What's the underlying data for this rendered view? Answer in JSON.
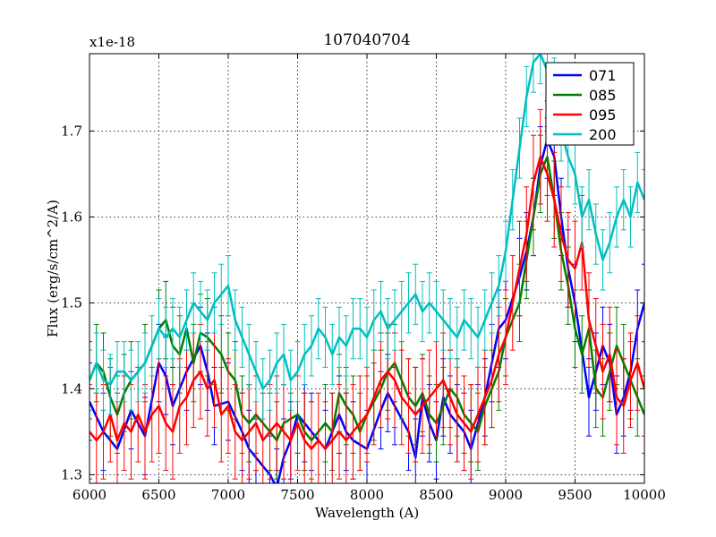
{
  "chart_data": {
    "type": "line",
    "title": "107040704",
    "xlabel": "Wavelength (A)",
    "ylabel": "Flux (erg/s/cm^2/A)",
    "offset_label": "x1e-18",
    "xlim": [
      6000,
      10000
    ],
    "ylim": [
      1.29,
      1.79
    ],
    "xticks": [
      6000,
      6500,
      7000,
      7500,
      8000,
      8500,
      9000,
      9500,
      10000
    ],
    "yticks": [
      1.3,
      1.4,
      1.5,
      1.6,
      1.7
    ],
    "ytick_labels": [
      "1.3",
      "1.4",
      "1.5",
      "1.6",
      "1.7"
    ],
    "grid": true,
    "legend_position": "top-right",
    "series": [
      {
        "name": "071",
        "color": "#0000ff",
        "err": 0.045,
        "x": [
          6000,
          6100,
          6200,
          6300,
          6400,
          6500,
          6550,
          6600,
          6700,
          6800,
          6850,
          6900,
          7000,
          7100,
          7150,
          7200,
          7300,
          7350,
          7400,
          7450,
          7500,
          7550,
          7600,
          7700,
          7800,
          7850,
          7900,
          8000,
          8100,
          8150,
          8200,
          8300,
          8350,
          8400,
          8450,
          8500,
          8550,
          8600,
          8650,
          8700,
          8750,
          8800,
          8850,
          8900,
          8950,
          9000,
          9100,
          9150,
          9200,
          9250,
          9300,
          9350,
          9400,
          9450,
          9500,
          9600,
          9650,
          9700,
          9750,
          9800,
          9850,
          9900,
          9950,
          10000
        ],
        "y": [
          1.385,
          1.35,
          1.33,
          1.375,
          1.345,
          1.43,
          1.415,
          1.38,
          1.42,
          1.45,
          1.42,
          1.38,
          1.385,
          1.35,
          1.33,
          1.32,
          1.3,
          1.285,
          1.32,
          1.34,
          1.37,
          1.36,
          1.35,
          1.33,
          1.37,
          1.35,
          1.34,
          1.33,
          1.375,
          1.395,
          1.38,
          1.35,
          1.32,
          1.39,
          1.36,
          1.34,
          1.39,
          1.37,
          1.36,
          1.35,
          1.33,
          1.36,
          1.39,
          1.43,
          1.47,
          1.48,
          1.53,
          1.56,
          1.6,
          1.66,
          1.69,
          1.67,
          1.6,
          1.54,
          1.5,
          1.39,
          1.42,
          1.45,
          1.43,
          1.37,
          1.39,
          1.42,
          1.47,
          1.5
        ]
      },
      {
        "name": "085",
        "color": "#008000",
        "err": 0.045,
        "x": [
          6000,
          6050,
          6100,
          6150,
          6200,
          6250,
          6300,
          6400,
          6500,
          6550,
          6600,
          6650,
          6700,
          6750,
          6800,
          6850,
          6900,
          6950,
          7000,
          7050,
          7100,
          7150,
          7200,
          7300,
          7350,
          7400,
          7500,
          7550,
          7600,
          7700,
          7750,
          7800,
          7850,
          7900,
          7950,
          8000,
          8050,
          8100,
          8150,
          8200,
          8250,
          8300,
          8350,
          8400,
          8450,
          8500,
          8550,
          8600,
          8650,
          8700,
          8750,
          8800,
          8850,
          8900,
          8950,
          9000,
          9100,
          9150,
          9200,
          9250,
          9300,
          9350,
          9400,
          9450,
          9500,
          9550,
          9600,
          9650,
          9700,
          9750,
          9800,
          9850,
          9900,
          9950,
          10000
        ],
        "y": [
          1.41,
          1.43,
          1.42,
          1.39,
          1.37,
          1.395,
          1.41,
          1.43,
          1.47,
          1.48,
          1.45,
          1.44,
          1.47,
          1.43,
          1.465,
          1.46,
          1.45,
          1.44,
          1.42,
          1.41,
          1.37,
          1.36,
          1.37,
          1.35,
          1.34,
          1.36,
          1.37,
          1.35,
          1.34,
          1.36,
          1.35,
          1.395,
          1.38,
          1.37,
          1.35,
          1.37,
          1.385,
          1.4,
          1.42,
          1.43,
          1.41,
          1.39,
          1.38,
          1.395,
          1.37,
          1.36,
          1.38,
          1.4,
          1.39,
          1.37,
          1.36,
          1.35,
          1.38,
          1.4,
          1.42,
          1.46,
          1.5,
          1.55,
          1.6,
          1.65,
          1.67,
          1.62,
          1.56,
          1.52,
          1.47,
          1.44,
          1.47,
          1.4,
          1.39,
          1.42,
          1.45,
          1.43,
          1.41,
          1.39,
          1.37
        ]
      },
      {
        "name": "095",
        "color": "#ff0000",
        "err": 0.055,
        "x": [
          6000,
          6050,
          6100,
          6150,
          6200,
          6250,
          6300,
          6350,
          6400,
          6450,
          6500,
          6550,
          6600,
          6650,
          6700,
          6750,
          6800,
          6850,
          6900,
          6950,
          7000,
          7050,
          7100,
          7150,
          7200,
          7250,
          7300,
          7350,
          7400,
          7450,
          7500,
          7550,
          7600,
          7650,
          7700,
          7750,
          7800,
          7850,
          7900,
          7950,
          8000,
          8050,
          8100,
          8150,
          8200,
          8250,
          8300,
          8350,
          8400,
          8450,
          8500,
          8550,
          8600,
          8650,
          8700,
          8750,
          8800,
          8850,
          8900,
          8950,
          9000,
          9050,
          9100,
          9150,
          9200,
          9250,
          9300,
          9350,
          9400,
          9450,
          9500,
          9550,
          9600,
          9650,
          9700,
          9750,
          9800,
          9850,
          9900,
          9950,
          10000
        ],
        "y": [
          1.35,
          1.34,
          1.35,
          1.37,
          1.34,
          1.36,
          1.35,
          1.37,
          1.35,
          1.37,
          1.38,
          1.36,
          1.35,
          1.38,
          1.39,
          1.41,
          1.42,
          1.4,
          1.41,
          1.37,
          1.38,
          1.35,
          1.34,
          1.35,
          1.36,
          1.34,
          1.35,
          1.36,
          1.35,
          1.34,
          1.36,
          1.34,
          1.33,
          1.34,
          1.33,
          1.34,
          1.35,
          1.34,
          1.35,
          1.36,
          1.37,
          1.39,
          1.41,
          1.42,
          1.41,
          1.39,
          1.38,
          1.37,
          1.38,
          1.39,
          1.4,
          1.41,
          1.39,
          1.37,
          1.36,
          1.35,
          1.37,
          1.39,
          1.41,
          1.44,
          1.46,
          1.5,
          1.54,
          1.58,
          1.64,
          1.67,
          1.65,
          1.62,
          1.58,
          1.55,
          1.54,
          1.57,
          1.48,
          1.45,
          1.42,
          1.44,
          1.39,
          1.38,
          1.41,
          1.43,
          1.4
        ]
      },
      {
        "name": "200",
        "color": "#00bfbf",
        "err": 0.035,
        "x": [
          6000,
          6050,
          6100,
          6150,
          6200,
          6250,
          6300,
          6350,
          6400,
          6450,
          6500,
          6550,
          6600,
          6650,
          6700,
          6750,
          6800,
          6850,
          6900,
          6950,
          7000,
          7050,
          7100,
          7150,
          7200,
          7250,
          7300,
          7350,
          7400,
          7450,
          7500,
          7550,
          7600,
          7650,
          7700,
          7750,
          7800,
          7850,
          7900,
          7950,
          8000,
          8050,
          8100,
          8150,
          8200,
          8250,
          8300,
          8350,
          8400,
          8450,
          8500,
          8550,
          8600,
          8650,
          8700,
          8750,
          8800,
          8850,
          8900,
          8950,
          9000,
          9050,
          9100,
          9150,
          9200,
          9250,
          9300,
          9350,
          9400,
          9450,
          9500,
          9550,
          9600,
          9650,
          9700,
          9750,
          9800,
          9850,
          9900,
          9950,
          10000
        ],
        "y": [
          1.41,
          1.43,
          1.41,
          1.405,
          1.42,
          1.42,
          1.41,
          1.42,
          1.43,
          1.45,
          1.47,
          1.46,
          1.47,
          1.46,
          1.48,
          1.5,
          1.49,
          1.48,
          1.5,
          1.51,
          1.52,
          1.48,
          1.46,
          1.44,
          1.42,
          1.4,
          1.41,
          1.43,
          1.44,
          1.41,
          1.42,
          1.44,
          1.45,
          1.47,
          1.46,
          1.44,
          1.46,
          1.45,
          1.47,
          1.47,
          1.46,
          1.48,
          1.49,
          1.47,
          1.48,
          1.49,
          1.5,
          1.51,
          1.49,
          1.5,
          1.49,
          1.48,
          1.47,
          1.46,
          1.48,
          1.47,
          1.46,
          1.48,
          1.5,
          1.52,
          1.56,
          1.62,
          1.68,
          1.74,
          1.78,
          1.79,
          1.77,
          1.75,
          1.7,
          1.67,
          1.65,
          1.6,
          1.62,
          1.58,
          1.55,
          1.57,
          1.6,
          1.62,
          1.6,
          1.64,
          1.62
        ]
      }
    ]
  }
}
